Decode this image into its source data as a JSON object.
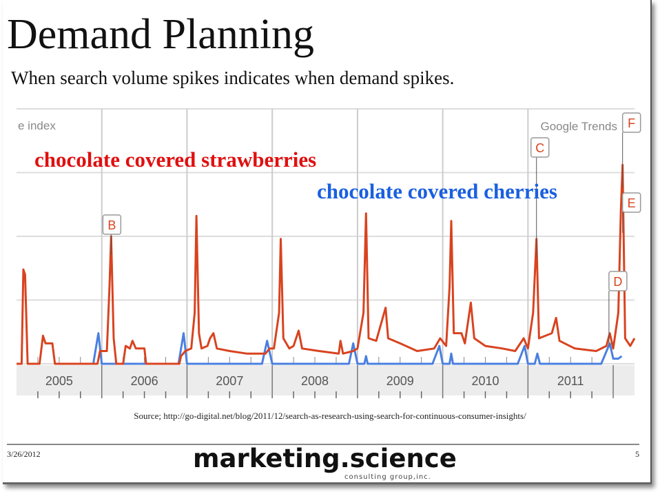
{
  "slide": {
    "title": "Demand Planning",
    "subtitle": "When search volume spikes indicates when demand spikes.",
    "source": "Source; http://go-digital.net/blog/2011/12/search-as-research-using-search-for-continuous-consumer-insights/",
    "date": "3/26/2012",
    "page_number": "5",
    "logo_text": "marketing.science",
    "logo_subtext": "consulting group,inc."
  },
  "chart_data": {
    "type": "line",
    "ylabel": "e index",
    "watermark": "Google Trends",
    "ylim": [
      0,
      100
    ],
    "xlim": [
      2005.0,
      2012.25
    ],
    "grid": true,
    "x_tick_labels": [
      "2005",
      "2006",
      "2007",
      "2008",
      "2009",
      "2010",
      "2011"
    ],
    "series": [
      {
        "name": "chocolate covered strawberries",
        "color": "#d8431f",
        "label_color": "#e01010",
        "points": [
          [
            2005.0,
            0
          ],
          [
            2005.06,
            0
          ],
          [
            2005.08,
            37
          ],
          [
            2005.1,
            35
          ],
          [
            2005.13,
            0
          ],
          [
            2005.27,
            0
          ],
          [
            2005.31,
            11
          ],
          [
            2005.34,
            8
          ],
          [
            2005.42,
            8
          ],
          [
            2005.45,
            0
          ],
          [
            2005.95,
            0
          ],
          [
            2005.98,
            5
          ],
          [
            2006.06,
            5
          ],
          [
            2006.09,
            30
          ],
          [
            2006.11,
            50
          ],
          [
            2006.14,
            10
          ],
          [
            2006.17,
            0
          ],
          [
            2006.25,
            0
          ],
          [
            2006.28,
            7
          ],
          [
            2006.33,
            6
          ],
          [
            2006.36,
            9
          ],
          [
            2006.4,
            6
          ],
          [
            2006.5,
            6
          ],
          [
            2006.52,
            0
          ],
          [
            2006.91,
            0
          ],
          [
            2006.93,
            3
          ],
          [
            2006.98,
            5
          ],
          [
            2007.05,
            6
          ],
          [
            2007.09,
            20
          ],
          [
            2007.11,
            58
          ],
          [
            2007.14,
            12
          ],
          [
            2007.17,
            6
          ],
          [
            2007.24,
            7
          ],
          [
            2007.27,
            10
          ],
          [
            2007.31,
            12
          ],
          [
            2007.35,
            6
          ],
          [
            2007.5,
            5
          ],
          [
            2007.7,
            4
          ],
          [
            2007.92,
            4
          ],
          [
            2007.97,
            6
          ],
          [
            2008.02,
            6
          ],
          [
            2008.08,
            20
          ],
          [
            2008.1,
            49
          ],
          [
            2008.13,
            10
          ],
          [
            2008.2,
            6
          ],
          [
            2008.25,
            7
          ],
          [
            2008.31,
            13
          ],
          [
            2008.35,
            6
          ],
          [
            2008.55,
            5
          ],
          [
            2008.78,
            4
          ],
          [
            2008.8,
            9
          ],
          [
            2008.83,
            4
          ],
          [
            2008.95,
            5
          ],
          [
            2009.0,
            6
          ],
          [
            2009.07,
            20
          ],
          [
            2009.1,
            59
          ],
          [
            2009.13,
            10
          ],
          [
            2009.22,
            9
          ],
          [
            2009.33,
            22
          ],
          [
            2009.36,
            10
          ],
          [
            2009.5,
            8
          ],
          [
            2009.7,
            5
          ],
          [
            2009.9,
            6
          ],
          [
            2009.97,
            10
          ],
          [
            2010.04,
            7
          ],
          [
            2010.08,
            30
          ],
          [
            2010.1,
            56
          ],
          [
            2010.13,
            12
          ],
          [
            2010.22,
            12
          ],
          [
            2010.26,
            8
          ],
          [
            2010.33,
            24
          ],
          [
            2010.37,
            10
          ],
          [
            2010.5,
            7
          ],
          [
            2010.7,
            6
          ],
          [
            2010.85,
            5
          ],
          [
            2010.95,
            10
          ],
          [
            2011.0,
            6
          ],
          [
            2011.06,
            20
          ],
          [
            2011.1,
            49
          ],
          [
            2011.13,
            10
          ],
          [
            2011.28,
            12
          ],
          [
            2011.33,
            18
          ],
          [
            2011.37,
            9
          ],
          [
            2011.55,
            6
          ],
          [
            2011.8,
            5
          ],
          [
            2011.92,
            7
          ],
          [
            2011.96,
            12
          ],
          [
            2012.0,
            6
          ],
          [
            2012.06,
            20
          ],
          [
            2012.09,
            60
          ],
          [
            2012.11,
            78
          ],
          [
            2012.14,
            10
          ],
          [
            2012.2,
            7
          ],
          [
            2012.25,
            10
          ]
        ]
      },
      {
        "name": "chocolate covered cherries",
        "color": "#4a7fe0",
        "label_color": "#1a5fe0",
        "points": [
          [
            2005.9,
            0
          ],
          [
            2005.96,
            12
          ],
          [
            2006.0,
            0
          ],
          [
            2006.9,
            0
          ],
          [
            2006.96,
            12
          ],
          [
            2007.0,
            0
          ],
          [
            2007.88,
            0
          ],
          [
            2007.94,
            9
          ],
          [
            2008.0,
            0
          ],
          [
            2008.9,
            0
          ],
          [
            2008.95,
            8
          ],
          [
            2009.0,
            0
          ],
          [
            2009.08,
            0
          ],
          [
            2009.1,
            3
          ],
          [
            2009.12,
            0
          ],
          [
            2009.88,
            0
          ],
          [
            2009.96,
            7
          ],
          [
            2010.0,
            0
          ],
          [
            2010.08,
            0
          ],
          [
            2010.1,
            4
          ],
          [
            2010.12,
            0
          ],
          [
            2010.88,
            0
          ],
          [
            2010.96,
            7
          ],
          [
            2011.0,
            0
          ],
          [
            2011.08,
            0
          ],
          [
            2011.11,
            4
          ],
          [
            2011.14,
            0
          ],
          [
            2011.86,
            0
          ],
          [
            2011.96,
            8
          ],
          [
            2012.0,
            2
          ],
          [
            2012.06,
            2
          ],
          [
            2012.1,
            3
          ]
        ]
      }
    ],
    "annotations": [
      {
        "label": "B",
        "x": 2006.11
      },
      {
        "label": "C",
        "x": 2011.1
      },
      {
        "label": "D",
        "x": 2011.95
      },
      {
        "label": "E",
        "x": 2012.11
      },
      {
        "label": "F",
        "x": 2012.11
      }
    ]
  }
}
